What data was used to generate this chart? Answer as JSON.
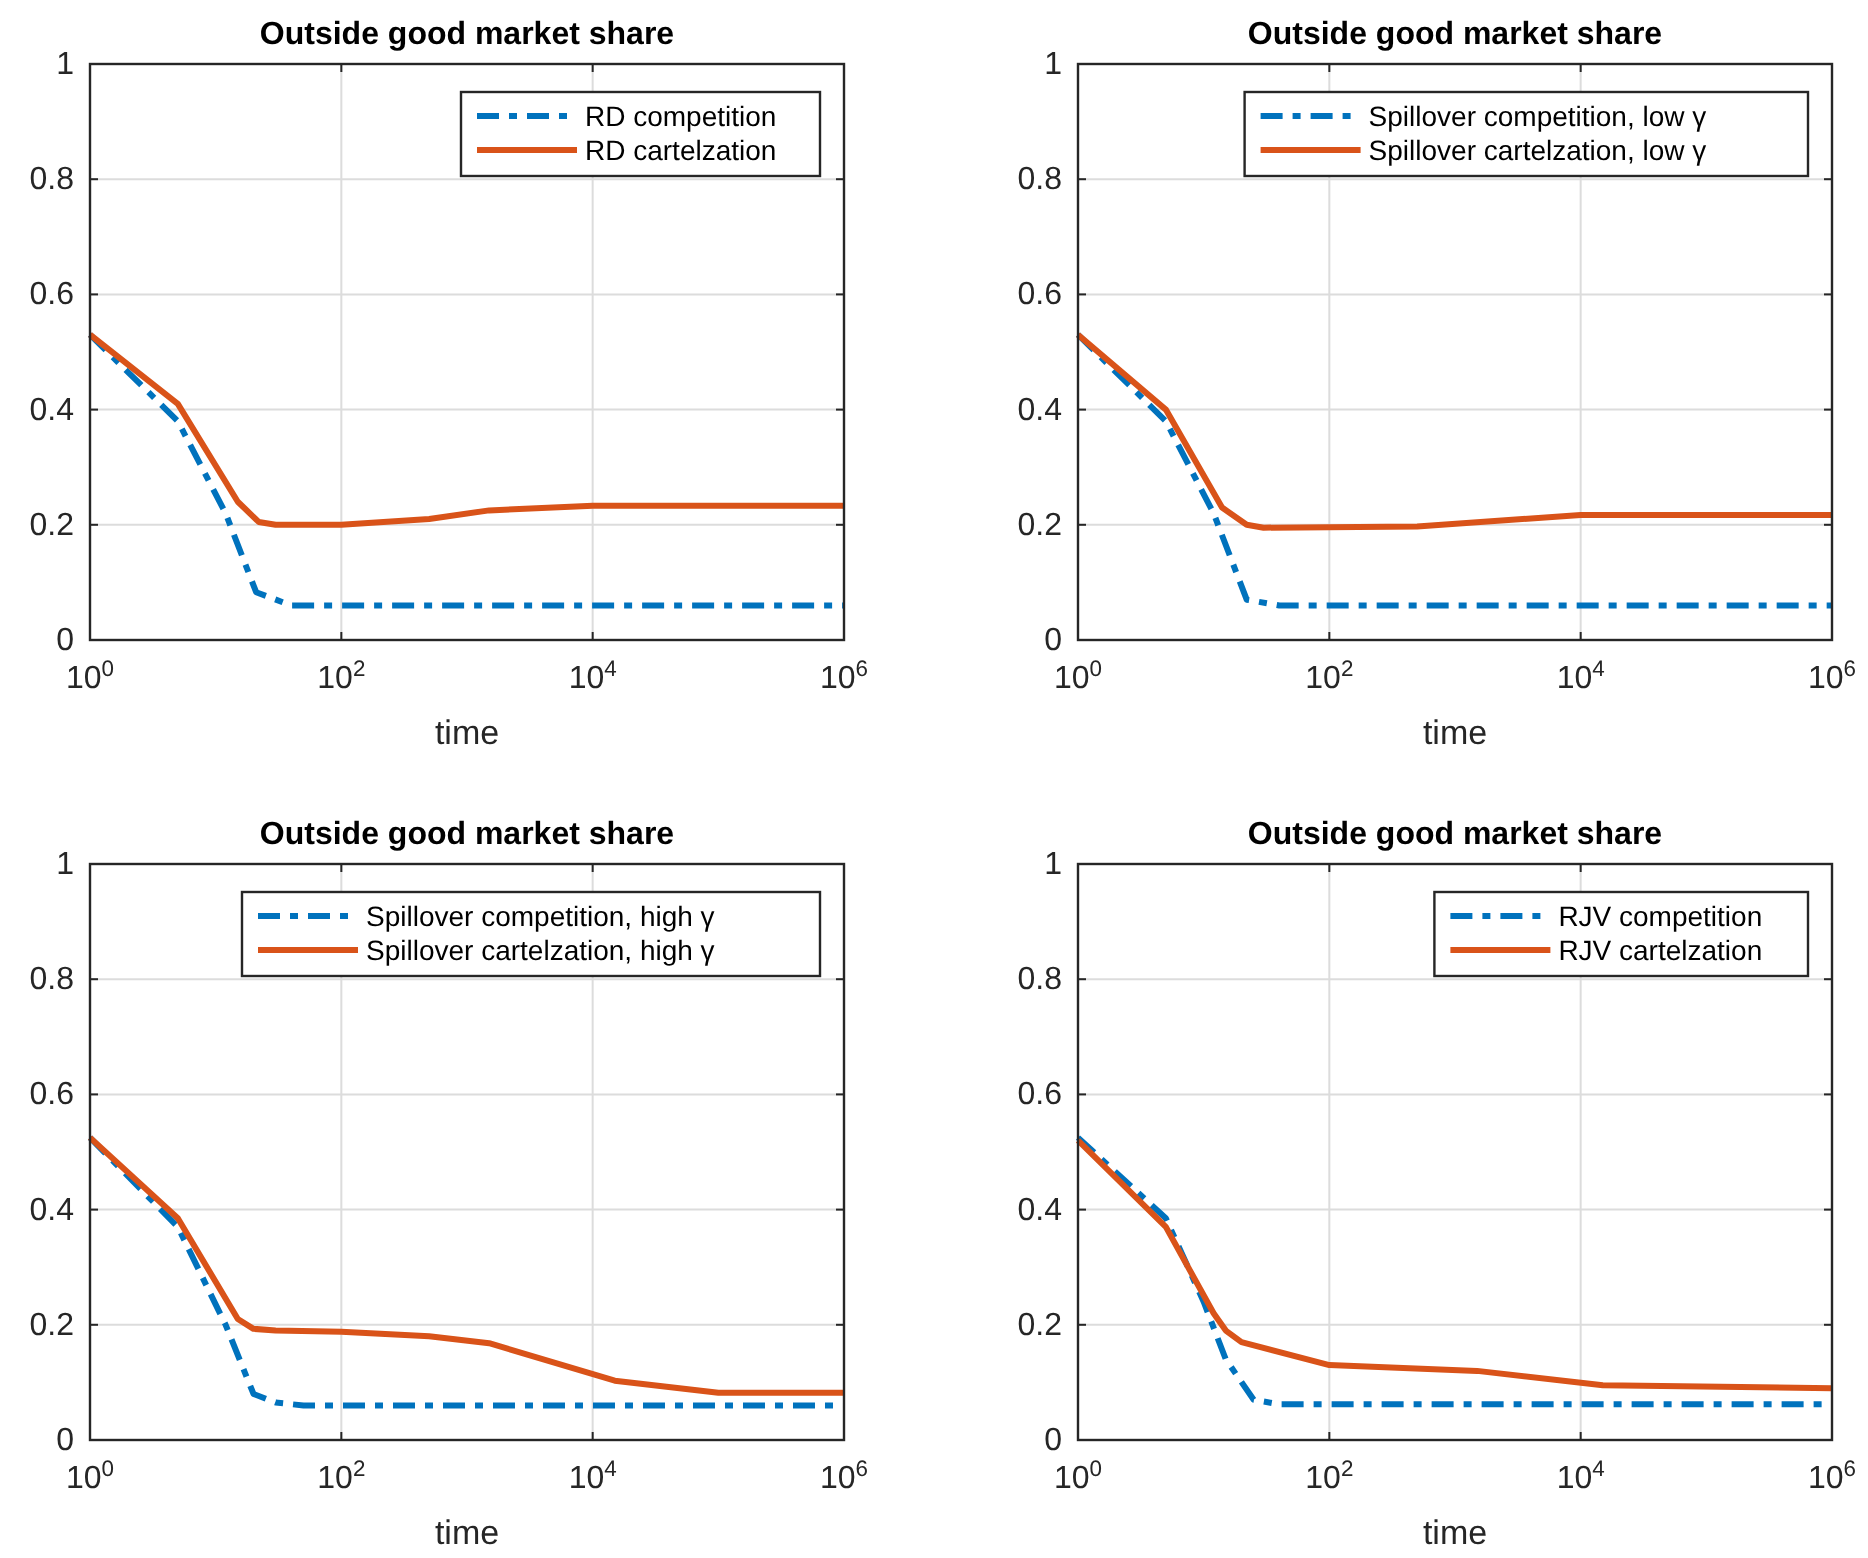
{
  "chart_data": [
    {
      "type": "line",
      "title": "Outside good market share",
      "xlabel": "time",
      "log": "x",
      "grid": true,
      "legend": "top right",
      "xlim": [
        1,
        1000000
      ],
      "ylim": [
        0,
        1
      ],
      "xticks": [
        {
          "value": 1,
          "label": "10$^{0}$"
        },
        {
          "value": 100,
          "label": "10$^{2}$"
        },
        {
          "value": 10000,
          "label": "10$^{4}$"
        },
        {
          "value": 1000000,
          "label": "10$^{6}$"
        }
      ],
      "yticks": [
        0,
        0.2,
        0.4,
        0.6,
        0.8,
        1
      ],
      "series": [
        {
          "name": "RD competition",
          "color": "#0072bd",
          "line_style": "dashed",
          "x": [
            1,
            5,
            12,
            21,
            40,
            1000000
          ],
          "values": [
            0.53,
            0.38,
            0.22,
            0.083,
            0.06,
            0.06
          ]
        },
        {
          "name": "RD cartelzation",
          "color": "#d95319",
          "line_style": "solid",
          "x": [
            1,
            5,
            15,
            22,
            30,
            100,
            500,
            1500,
            10000,
            1000000
          ],
          "values": [
            0.53,
            0.41,
            0.24,
            0.205,
            0.2,
            0.2,
            0.21,
            0.225,
            0.233,
            0.233
          ]
        }
      ]
    },
    {
      "type": "line",
      "title": "Outside good market share",
      "xlabel": "time",
      "log": "x",
      "grid": true,
      "legend": "top right",
      "xlim": [
        1,
        1000000
      ],
      "ylim": [
        0,
        1
      ],
      "xticks": [
        {
          "value": 1,
          "label": "10$^{0}$"
        },
        {
          "value": 100,
          "label": "10$^{2}$"
        },
        {
          "value": 10000,
          "label": "10$^{4}$"
        },
        {
          "value": 1000000,
          "label": "10$^{6}$"
        }
      ],
      "yticks": [
        0,
        0.2,
        0.4,
        0.6,
        0.8,
        1
      ],
      "series": [
        {
          "name": "Spillover competition, low γ",
          "color": "#0072bd",
          "line_style": "dashed",
          "x": [
            1,
            5,
            12,
            22,
            40,
            1000000
          ],
          "values": [
            0.53,
            0.38,
            0.22,
            0.07,
            0.06,
            0.06
          ]
        },
        {
          "name": "Spillover cartelzation, low γ",
          "color": "#d95319",
          "line_style": "solid",
          "x": [
            1,
            5,
            14,
            22,
            30,
            500,
            10000,
            1000000
          ],
          "values": [
            0.53,
            0.4,
            0.23,
            0.2,
            0.195,
            0.197,
            0.217,
            0.217
          ]
        }
      ]
    },
    {
      "type": "line",
      "title": "Outside good market share",
      "xlabel": "time",
      "log": "x",
      "grid": true,
      "legend": "top right",
      "xlim": [
        1,
        1000000
      ],
      "ylim": [
        0,
        1
      ],
      "xticks": [
        {
          "value": 1,
          "label": "10$^{0}$"
        },
        {
          "value": 100,
          "label": "10$^{2}$"
        },
        {
          "value": 10000,
          "label": "10$^{4}$"
        },
        {
          "value": 1000000,
          "label": "10$^{6}$"
        }
      ],
      "yticks": [
        0,
        0.2,
        0.4,
        0.6,
        0.8,
        1
      ],
      "series": [
        {
          "name": "Spillover competition, high γ",
          "color": "#0072bd",
          "line_style": "dashed",
          "x": [
            1,
            5,
            12,
            20,
            30,
            50,
            1000000
          ],
          "values": [
            0.525,
            0.37,
            0.2,
            0.08,
            0.065,
            0.06,
            0.06
          ]
        },
        {
          "name": "Spillover cartelzation, high γ",
          "color": "#d95319",
          "line_style": "solid",
          "x": [
            1,
            5,
            15,
            20,
            30,
            100,
            500,
            1500,
            15000,
            100000,
            1000000
          ],
          "values": [
            0.525,
            0.385,
            0.21,
            0.193,
            0.19,
            0.188,
            0.18,
            0.168,
            0.103,
            0.082,
            0.082
          ]
        }
      ]
    },
    {
      "type": "line",
      "title": "Outside good market share",
      "xlabel": "time",
      "log": "x",
      "grid": true,
      "legend": "top right",
      "xlim": [
        1,
        1000000
      ],
      "ylim": [
        0,
        1
      ],
      "xticks": [
        {
          "value": 1,
          "label": "10$^{0}$"
        },
        {
          "value": 100,
          "label": "10$^{2}$"
        },
        {
          "value": 10000,
          "label": "10$^{4}$"
        },
        {
          "value": 1000000,
          "label": "10$^{6}$"
        }
      ],
      "yticks": [
        0,
        0.2,
        0.4,
        0.6,
        0.8,
        1
      ],
      "series": [
        {
          "name": "RJV competition",
          "color": "#0072bd",
          "line_style": "dashed",
          "x": [
            1,
            5,
            10,
            15,
            25,
            40,
            1000000
          ],
          "values": [
            0.525,
            0.385,
            0.24,
            0.14,
            0.07,
            0.062,
            0.062
          ]
        },
        {
          "name": "RJV cartelzation",
          "color": "#d95319",
          "line_style": "solid",
          "x": [
            1,
            5,
            12,
            15,
            20,
            100,
            1500,
            15000,
            1000000
          ],
          "values": [
            0.52,
            0.37,
            0.22,
            0.19,
            0.17,
            0.13,
            0.12,
            0.095,
            0.09
          ]
        }
      ]
    }
  ]
}
